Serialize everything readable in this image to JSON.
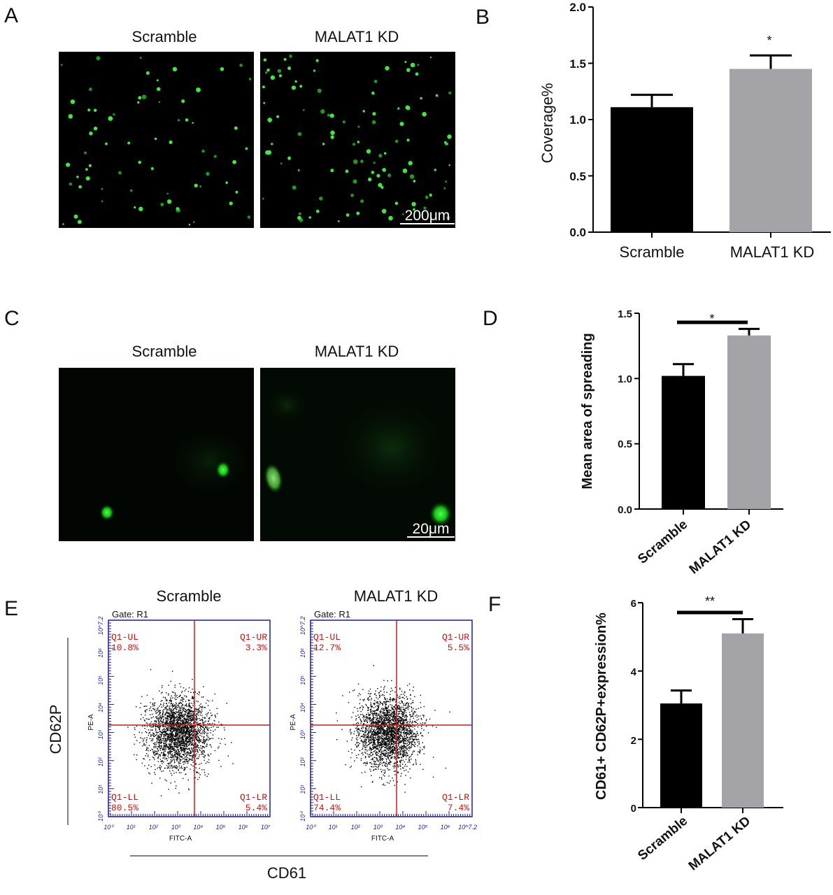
{
  "panel_labels": {
    "A": "A",
    "B": "B",
    "C": "C",
    "D": "D",
    "E": "E",
    "F": "F"
  },
  "panel_A": {
    "titles": [
      "Scramble",
      "MALAT1 KD"
    ],
    "scale_bar": "200μm"
  },
  "panel_C": {
    "titles": [
      "Scramble",
      "MALAT1 KD"
    ],
    "scale_bar": "20μm"
  },
  "panel_E": {
    "titles": [
      "Scramble",
      "MALAT1 KD"
    ],
    "gate": "Gate: R1",
    "y_axis_label": "CD62P",
    "x_axis_label": "CD61",
    "plot_xlabel": "FITC-A",
    "plot_ylabel": "PE-A",
    "x_ticks": [
      "10⁰",
      "10¹",
      "10²",
      "10³",
      "10⁴",
      "10⁵",
      "10⁶",
      "10⁷"
    ],
    "x_ticks_right": [
      "10⁰",
      "10¹",
      "10²",
      "10³",
      "10⁴",
      "10⁵",
      "10⁶",
      "10^7.2"
    ],
    "y_ticks": [
      "10⁰",
      "10¹",
      "10²",
      "10³",
      "10⁴",
      "10⁵",
      "10⁶",
      "10^7.2"
    ],
    "plots": [
      {
        "UL": "Q1-UL",
        "UL_val": "10.8%",
        "UR": "Q1-UR",
        "UR_val": "3.3%",
        "LL": "Q1-LL",
        "LL_val": "80.5%",
        "LR": "Q1-LR",
        "LR_val": "5.4%"
      },
      {
        "UL": "Q1-UL",
        "UL_val": "12.7%",
        "UR": "Q1-UR",
        "UR_val": "5.5%",
        "LL": "Q1-LL",
        "LL_val": "74.4%",
        "LR": "Q1-LR",
        "LR_val": "7.4%"
      }
    ]
  },
  "colors": {
    "black_bar": "#000000",
    "gray_bar": "#a3a3a8",
    "green_signal": "#22dd22",
    "gate_red": "#d21a1a",
    "fcs_blue": "#1a1aa8"
  },
  "chart_data": [
    {
      "panel": "B",
      "type": "bar",
      "categories": [
        "Scramble",
        "MALAT1 KD"
      ],
      "values": [
        1.11,
        1.45
      ],
      "errors": [
        0.11,
        0.12
      ],
      "ylabel": "Coverage%",
      "xlabel": "",
      "ylim": [
        0,
        2.0
      ],
      "y_ticks": [
        "0.0",
        "0.5",
        "1.0",
        "1.5",
        "2.0"
      ],
      "significance": "*"
    },
    {
      "panel": "D",
      "type": "bar",
      "categories": [
        "Scramble",
        "MALAT1 KD"
      ],
      "values": [
        1.02,
        1.33
      ],
      "errors": [
        0.09,
        0.05
      ],
      "ylabel": "Mean area of spreading",
      "xlabel": "",
      "ylim": [
        0,
        1.5
      ],
      "y_ticks": [
        "0.0",
        "0.5",
        "1.0",
        "1.5"
      ],
      "significance": "*"
    },
    {
      "panel": "F",
      "type": "bar",
      "categories": [
        "Scramble",
        "MALAT1 KD"
      ],
      "values": [
        3.05,
        5.1
      ],
      "errors": [
        0.38,
        0.42
      ],
      "ylabel": "CD61+ CD62P+expression%",
      "xlabel": "",
      "ylim": [
        0,
        6
      ],
      "y_ticks": [
        "0",
        "2",
        "4",
        "6"
      ],
      "significance": "**"
    }
  ]
}
